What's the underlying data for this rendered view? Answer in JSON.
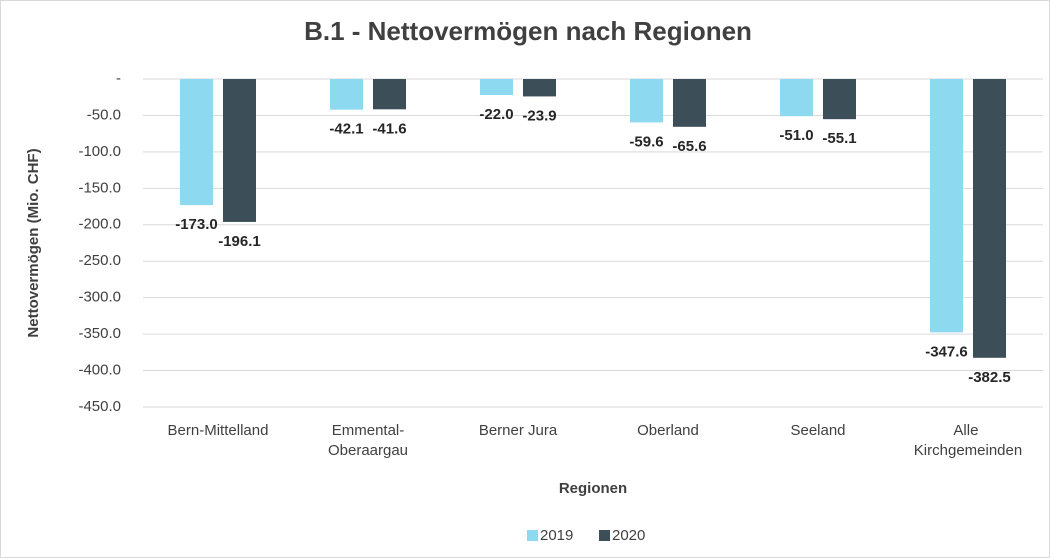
{
  "chart_data": {
    "type": "bar",
    "title": "B.1 - Nettovermögen nach Regionen",
    "x_label": "Regionen",
    "y_label": "Nettovermögen (Mio. CHF)",
    "categories": [
      "Bern-Mittelland",
      "Emmental-Oberaargau",
      "Berner Jura",
      "Oberland",
      "Seeland",
      "Alle Kirchgemeinden"
    ],
    "series": [
      {
        "name": "2019",
        "color": "#8dd9ef",
        "values": [
          -173.0,
          -42.1,
          -22.0,
          -59.6,
          -51.0,
          -347.6
        ],
        "value_labels": [
          "-173.0",
          "-42.1",
          "-22.0",
          "-59.6",
          "-51.0",
          "-347.6"
        ]
      },
      {
        "name": "2020",
        "color": "#3c4f59",
        "values": [
          -196.1,
          -41.6,
          -23.9,
          -65.6,
          -55.1,
          -382.5
        ],
        "value_labels": [
          "-196.1",
          "-41.6",
          "-23.9",
          "-65.6",
          "-55.1",
          "-382.5"
        ]
      }
    ],
    "ylim": [
      -450,
      0
    ],
    "yticks": [
      {
        "value": 0,
        "label": "-"
      },
      {
        "value": -50,
        "label": "-50.0"
      },
      {
        "value": -100,
        "label": "-100.0"
      },
      {
        "value": -150,
        "label": "-150.0"
      },
      {
        "value": -200,
        "label": "-200.0"
      },
      {
        "value": -250,
        "label": "-250.0"
      },
      {
        "value": -300,
        "label": "-300.0"
      },
      {
        "value": -350,
        "label": "-350.0"
      },
      {
        "value": -400,
        "label": "-400.0"
      },
      {
        "value": -450,
        "label": "-450.0"
      }
    ],
    "grid": true,
    "legend": "bottom"
  }
}
